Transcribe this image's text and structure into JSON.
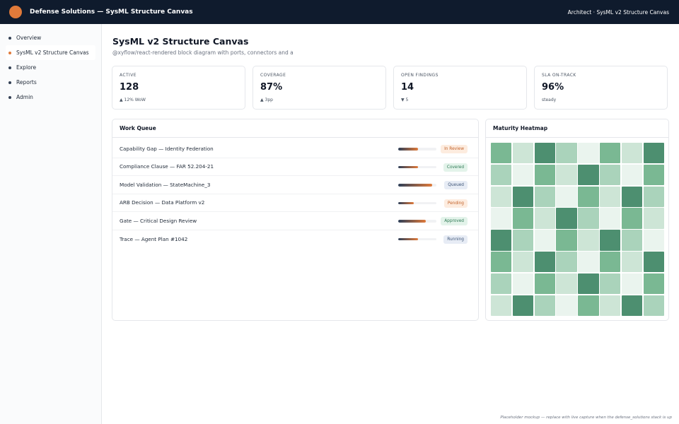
{
  "app": {
    "title": "Defense Solutions — SysML Structure Canvas",
    "context": "Architect · SysML v2 Structure Canvas",
    "logo_icon": "orange-circle-logo",
    "logo_color": "#e07a3a"
  },
  "colors": {
    "topbar": "#0f1b2d",
    "accent": "#e07a3a",
    "heat_levels": [
      "#eaf4ee",
      "#cde5d6",
      "#aad3bb",
      "#7ab893",
      "#4d8f70"
    ]
  },
  "sidebar": {
    "items": [
      {
        "label": "Overview",
        "active": false
      },
      {
        "label": "SysML v2 Structure Canvas",
        "active": true
      },
      {
        "label": "Explore",
        "active": false
      },
      {
        "label": "Reports",
        "active": false
      },
      {
        "label": "Admin",
        "active": false
      }
    ]
  },
  "page": {
    "title": "SysML v2 Structure Canvas",
    "subtitle": "@xyflow/react-rendered block diagram with ports, connectors and a"
  },
  "kpis": [
    {
      "label": "ACTIVE",
      "value": "128",
      "delta": "▲ 12% WoW"
    },
    {
      "label": "COVERAGE",
      "value": "87%",
      "delta": "▲ 3pp"
    },
    {
      "label": "OPEN FINDINGS",
      "value": "14",
      "delta": "▼ 5"
    },
    {
      "label": "SLA ON-TRACK",
      "value": "96%",
      "delta": "steady"
    }
  ],
  "work_queue": {
    "title": "Work Queue",
    "rows": [
      {
        "title": "Capability Gap — Identity Federation",
        "progress": 0.52,
        "status": "In Review",
        "badge_bg": "#fdecdf",
        "badge_fg": "#c2622a"
      },
      {
        "title": "Compliance Clause — FAR 52.204-21",
        "progress": 0.52,
        "status": "Covered",
        "badge_bg": "#e3f3ea",
        "badge_fg": "#2f7a55"
      },
      {
        "title": "Model Validation — StateMachine_3",
        "progress": 0.88,
        "status": "Queued",
        "badge_bg": "#e7ecf5",
        "badge_fg": "#3e5577"
      },
      {
        "title": "ARB Decision — Data Platform v2",
        "progress": 0.4,
        "status": "Pending",
        "badge_bg": "#fdecdf",
        "badge_fg": "#c2622a"
      },
      {
        "title": "Gate — Critical Design Review",
        "progress": 0.72,
        "status": "Approved",
        "badge_bg": "#e3f3ea",
        "badge_fg": "#2f7a55"
      },
      {
        "title": "Trace — Agent Plan #1042",
        "progress": 0.52,
        "status": "Running",
        "badge_bg": "#e7ecf5",
        "badge_fg": "#3e5577"
      }
    ]
  },
  "heatmap": {
    "title": "Maturity Heatmap",
    "levels": [
      [
        3,
        1,
        4,
        2,
        0,
        3,
        1,
        4
      ],
      [
        2,
        0,
        3,
        1,
        4,
        2,
        0,
        3
      ],
      [
        1,
        4,
        2,
        0,
        3,
        1,
        4,
        2
      ],
      [
        0,
        3,
        1,
        4,
        2,
        0,
        3,
        1
      ],
      [
        4,
        2,
        0,
        3,
        1,
        4,
        2,
        0
      ],
      [
        3,
        1,
        4,
        2,
        0,
        3,
        1,
        4
      ],
      [
        2,
        0,
        3,
        1,
        4,
        2,
        0,
        3
      ],
      [
        1,
        4,
        2,
        0,
        3,
        1,
        4,
        2
      ]
    ]
  },
  "footer": {
    "note": "Placeholder mockup — replace with live capture when the defense_solutions stack is up"
  }
}
